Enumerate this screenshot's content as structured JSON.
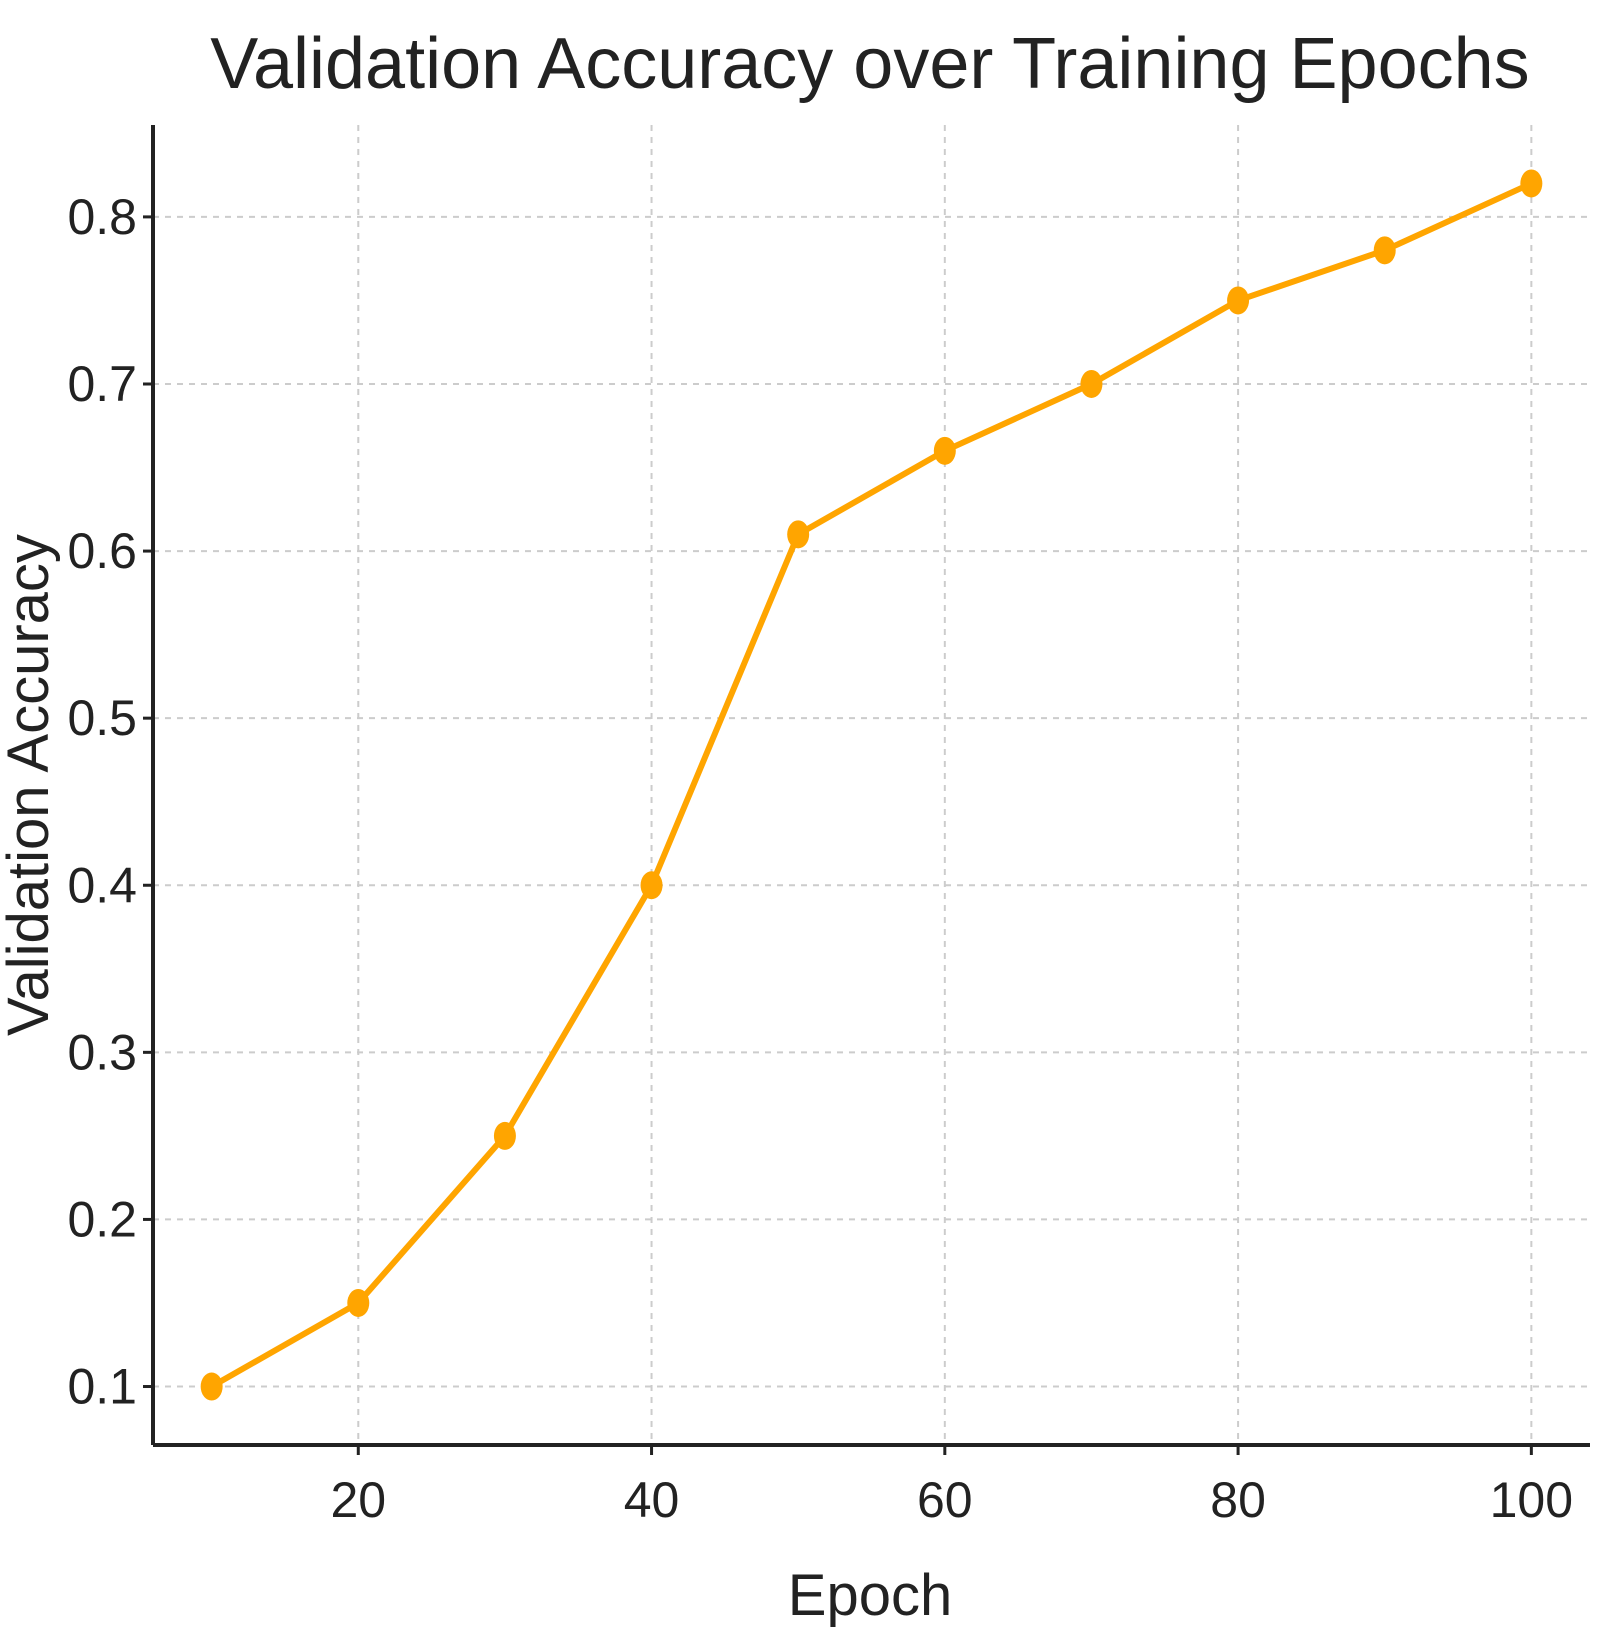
{
  "chart_data": {
    "type": "line",
    "title": "Validation Accuracy over Training Epochs",
    "xlabel": "Epoch",
    "ylabel": "Validation Accuracy",
    "xlim": [
      6,
      104
    ],
    "ylim": [
      0.065,
      0.855
    ],
    "xticks": [
      20,
      40,
      60,
      80,
      100
    ],
    "xtick_labels": [
      "20",
      "40",
      "60",
      "80",
      "100"
    ],
    "yticks": [
      0.1,
      0.2,
      0.3,
      0.4,
      0.5,
      0.6,
      0.7,
      0.8
    ],
    "ytick_labels": [
      "0.1",
      "0.2",
      "0.3",
      "0.4",
      "0.5",
      "0.6",
      "0.7",
      "0.8"
    ],
    "grid": true,
    "series": [
      {
        "color": "#FFA500",
        "marker": "circle",
        "x": [
          10,
          20,
          30,
          40,
          50,
          60,
          70,
          80,
          90,
          100
        ],
        "y": [
          0.1,
          0.15,
          0.25,
          0.4,
          0.61,
          0.66,
          0.7,
          0.75,
          0.78,
          0.82
        ]
      }
    ]
  }
}
